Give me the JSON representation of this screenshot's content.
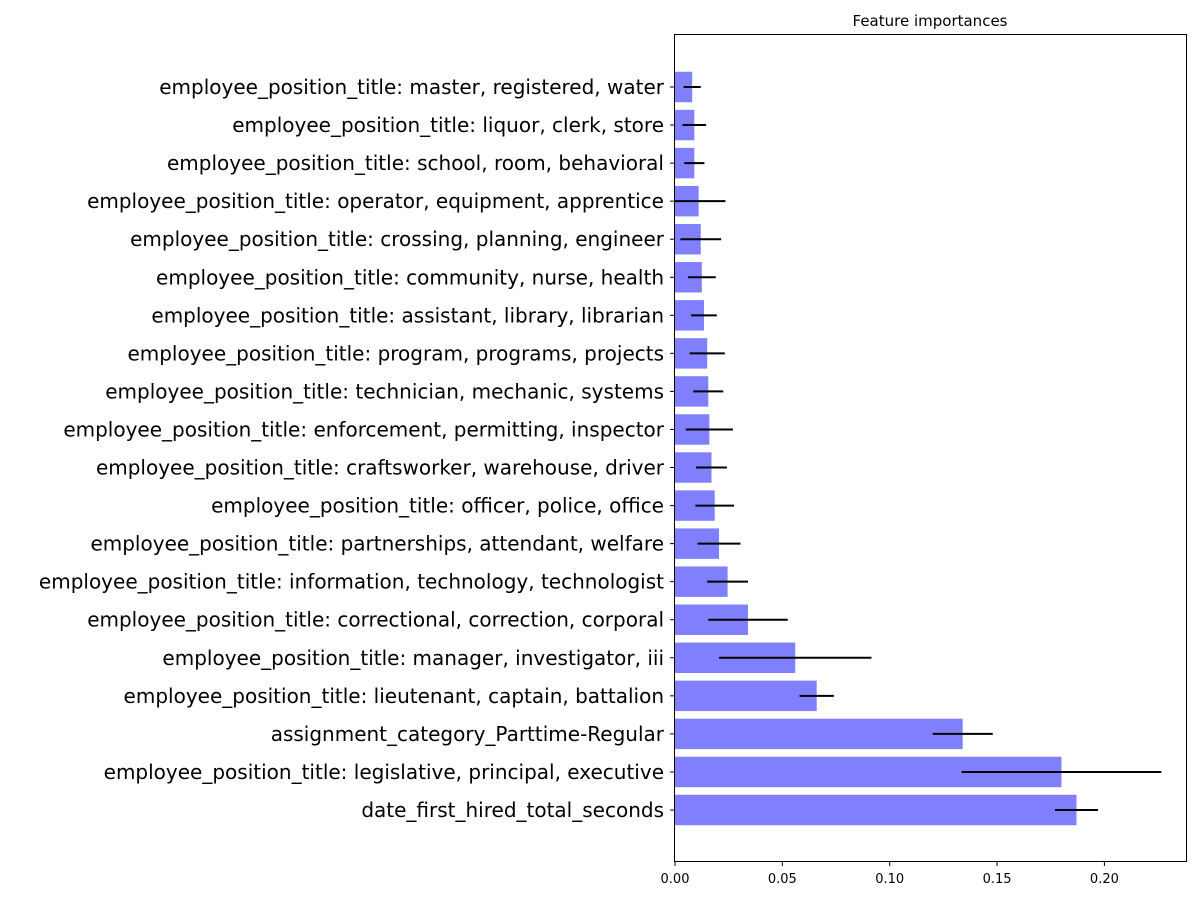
{
  "chart_data": {
    "type": "bar",
    "orientation": "horizontal",
    "title": "Feature importances",
    "xlabel": "",
    "ylabel": "",
    "xlim": [
      0,
      0.238
    ],
    "xticks": [
      0.0,
      0.05,
      0.1,
      0.15,
      0.2
    ],
    "xtick_labels": [
      "0.00",
      "0.05",
      "0.10",
      "0.15",
      "0.20"
    ],
    "bar_color": "#8080ff",
    "error_color": "#000000",
    "grid": false,
    "categories": [
      "employee_position_title: master, registered, water",
      "employee_position_title: liquor, clerk, store",
      "employee_position_title: school, room, behavioral",
      "employee_position_title: operator, equipment, apprentice",
      "employee_position_title: crossing, planning, engineer",
      "employee_position_title: community, nurse, health",
      "employee_position_title: assistant, library, librarian",
      "employee_position_title: program, programs, projects",
      "employee_position_title: technician, mechanic, systems",
      "employee_position_title: enforcement, permitting, inspector",
      "employee_position_title: craftsworker, warehouse, driver",
      "employee_position_title: officer, police, office",
      "employee_position_title: partnerships, attendant, welfare",
      "employee_position_title: information, technology, technologist",
      "employee_position_title: correctional, correction, corporal",
      "employee_position_title: manager, investigator, iii",
      "employee_position_title: lieutenant, captain, battalion",
      "assignment_category_Parttime-Regular",
      "employee_position_title: legislative, principal, executive",
      "date_first_hired_total_seconds"
    ],
    "values": [
      0.008,
      0.009,
      0.009,
      0.011,
      0.012,
      0.0125,
      0.0135,
      0.015,
      0.0155,
      0.016,
      0.017,
      0.0185,
      0.0205,
      0.0245,
      0.034,
      0.056,
      0.066,
      0.134,
      0.18,
      0.187
    ],
    "errors": [
      0.004,
      0.0055,
      0.0047,
      0.0125,
      0.0095,
      0.0065,
      0.006,
      0.0082,
      0.007,
      0.011,
      0.0072,
      0.009,
      0.01,
      0.0095,
      0.0185,
      0.0355,
      0.008,
      0.014,
      0.0465,
      0.01
    ]
  }
}
